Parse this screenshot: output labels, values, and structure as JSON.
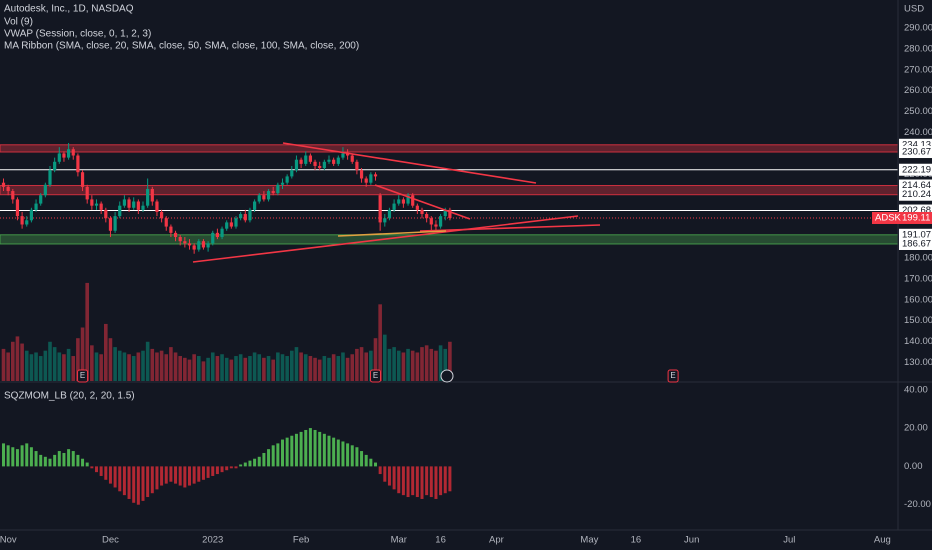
{
  "chart_data": {
    "type": "candlestick",
    "title": "Autodesk, Inc., 1D, NASDAQ",
    "indicators": [
      "Vol (9)",
      "VWAP (Session, close, 0, 1, 2, 3)",
      "MA Ribbon (SMA, close, 20, SMA, close, 50, SMA, close, 100, SMA, close, 200)"
    ],
    "currency": "USD",
    "symbol": "ADSK",
    "up_color": "#089981",
    "down_color": "#f23645",
    "grid": true,
    "open": [
      216,
      214,
      212,
      208,
      200,
      196,
      198,
      203,
      206,
      210,
      215,
      222,
      226,
      230,
      228,
      232,
      229,
      221,
      214,
      208,
      205,
      206,
      203,
      199,
      193,
      200,
      205,
      208,
      204,
      207,
      203,
      205,
      213,
      207,
      202,
      199,
      195,
      192,
      190,
      188,
      187,
      186,
      184,
      188,
      185,
      187,
      192,
      190,
      194,
      197,
      195,
      199,
      201,
      198,
      203,
      207,
      210,
      208,
      212,
      211,
      215,
      216,
      219,
      222,
      227,
      225,
      229,
      226,
      224,
      223,
      226,
      227,
      225,
      228,
      230,
      229,
      226,
      222,
      218,
      216,
      220,
      210,
      197,
      199,
      203,
      206,
      208,
      206,
      210,
      205,
      203,
      201,
      199,
      196,
      195,
      200,
      203
    ],
    "high": [
      218,
      215,
      213,
      209,
      202,
      200,
      204,
      208,
      211,
      216,
      224,
      228,
      233,
      231,
      235,
      233,
      230,
      222,
      215,
      210,
      208,
      207,
      204,
      200,
      202,
      207,
      210,
      209,
      209,
      208,
      207,
      218,
      214,
      208,
      203,
      200,
      196,
      193,
      191,
      190,
      189,
      187,
      189,
      189,
      188,
      193,
      194,
      195,
      198,
      199,
      200,
      202,
      203,
      204,
      208,
      211,
      212,
      213,
      214,
      216,
      218,
      220,
      224,
      229,
      228,
      231,
      230,
      227,
      226,
      227,
      229,
      228,
      229,
      233,
      232,
      230,
      227,
      223,
      219,
      221,
      221,
      211,
      201,
      204,
      208,
      210,
      209,
      211,
      211,
      206,
      204,
      202,
      200,
      198,
      201,
      204,
      204
    ],
    "low": [
      212,
      210,
      206,
      198,
      194,
      195,
      197,
      202,
      205,
      209,
      214,
      221,
      225,
      226,
      227,
      227,
      219,
      212,
      206,
      203,
      203,
      201,
      197,
      190,
      192,
      199,
      204,
      202,
      203,
      201,
      202,
      204,
      205,
      200,
      197,
      193,
      190,
      188,
      186,
      185,
      184,
      182,
      183,
      184,
      183,
      186,
      189,
      189,
      193,
      194,
      194,
      198,
      197,
      197,
      202,
      206,
      207,
      207,
      210,
      210,
      213,
      215,
      218,
      221,
      223,
      224,
      225,
      222,
      222,
      222,
      225,
      224,
      224,
      227,
      227,
      225,
      220,
      216,
      214,
      215,
      217,
      193,
      195,
      198,
      202,
      205,
      204,
      205,
      204,
      201,
      199,
      197,
      193,
      193,
      194,
      198,
      198
    ],
    "close": [
      214,
      212,
      208,
      200,
      196,
      198,
      203,
      206,
      210,
      215,
      222,
      226,
      230,
      228,
      232,
      229,
      221,
      214,
      208,
      205,
      206,
      203,
      199,
      193,
      200,
      205,
      208,
      204,
      207,
      203,
      205,
      213,
      207,
      202,
      199,
      195,
      192,
      190,
      188,
      187,
      186,
      184,
      188,
      185,
      187,
      192,
      190,
      194,
      197,
      195,
      199,
      201,
      198,
      203,
      207,
      210,
      208,
      212,
      211,
      215,
      216,
      219,
      222,
      227,
      225,
      229,
      226,
      224,
      223,
      226,
      227,
      225,
      228,
      230,
      229,
      226,
      222,
      218,
      216,
      220,
      219,
      197,
      199,
      203,
      206,
      208,
      206,
      210,
      205,
      203,
      201,
      199,
      196,
      195,
      200,
      203,
      199.11
    ],
    "ylim": [
      121.6,
      303.4
    ],
    "yticks": [
      {
        "value": 290,
        "label": "290.00"
      },
      {
        "value": 280,
        "label": "280.00"
      },
      {
        "value": 270,
        "label": "270.00"
      },
      {
        "value": 260,
        "label": "260.00"
      },
      {
        "value": 250,
        "label": "250.00"
      },
      {
        "value": 240,
        "label": "240.00"
      },
      {
        "value": 230,
        "label": "230.00"
      },
      {
        "value": 220,
        "label": "220.00"
      },
      {
        "value": 210,
        "label": "210.00"
      },
      {
        "value": 200,
        "label": "200.00"
      },
      {
        "value": 190,
        "label": "190.00"
      },
      {
        "value": 180,
        "label": "180.00"
      },
      {
        "value": 170,
        "label": "170.00"
      },
      {
        "value": 160,
        "label": "160.00"
      },
      {
        "value": 150,
        "label": "150.00"
      },
      {
        "value": 140,
        "label": "140.00"
      },
      {
        "value": 130,
        "label": "130.00"
      }
    ],
    "xticks": [
      {
        "value": 1,
        "label": "Nov"
      },
      {
        "value": 23,
        "label": "Dec"
      },
      {
        "value": 45,
        "label": "2023"
      },
      {
        "value": 64,
        "label": "Feb"
      },
      {
        "value": 85,
        "label": "Mar"
      },
      {
        "value": 94,
        "label": "16"
      },
      {
        "value": 106,
        "label": "Apr"
      },
      {
        "value": 126,
        "label": "May"
      },
      {
        "value": 136,
        "label": "16"
      },
      {
        "value": 148,
        "label": "Jun"
      },
      {
        "value": 169,
        "label": "Jul"
      },
      {
        "value": 189,
        "label": "Aug"
      }
    ],
    "zones": [
      {
        "low": 230.67,
        "high": 234.13,
        "color": "#f23645"
      },
      {
        "low": 210.24,
        "high": 214.64,
        "color": "#f23645"
      },
      {
        "low": 186.67,
        "high": 191.07,
        "color": "#4caf50"
      }
    ],
    "levels": [
      222.19,
      202.68
    ],
    "events": [
      {
        "bar": 17,
        "label": "E"
      },
      {
        "bar": 80,
        "label": "E"
      },
      {
        "bar": 144,
        "label": "E"
      }
    ],
    "volume": {
      "values": [
        1.8,
        1.6,
        2.2,
        2.5,
        2.1,
        1.7,
        1.5,
        1.6,
        1.4,
        1.7,
        2.2,
        1.9,
        1.6,
        1.5,
        1.8,
        1.4,
        2.4,
        3.0,
        5.5,
        2.0,
        1.6,
        1.5,
        3.2,
        2.4,
        1.9,
        1.7,
        1.6,
        1.5,
        1.4,
        1.6,
        1.7,
        2.2,
        1.8,
        1.6,
        1.7,
        1.5,
        1.9,
        1.6,
        1.4,
        1.3,
        1.2,
        1.5,
        1.4,
        1.1,
        1.3,
        1.6,
        1.4,
        1.5,
        1.3,
        1.2,
        1.4,
        1.5,
        1.3,
        1.4,
        1.6,
        1.5,
        1.3,
        1.4,
        1.2,
        1.6,
        1.5,
        1.4,
        1.7,
        1.9,
        1.6,
        1.5,
        1.4,
        1.3,
        1.2,
        1.4,
        1.3,
        1.5,
        1.4,
        1.6,
        1.3,
        1.5,
        1.8,
        1.9,
        1.6,
        1.7,
        2.4,
        4.3,
        2.6,
        1.8,
        1.9,
        1.7,
        1.6,
        1.8,
        1.7,
        1.6,
        1.9,
        2.0,
        1.8,
        1.7,
        2.0,
        1.8,
        2.2
      ],
      "ylim": [
        0,
        6
      ]
    },
    "momentum": {
      "name": "SQZMOM_LB (20, 2, 20, 1.5)",
      "values": [
        12,
        11,
        10,
        9,
        11,
        12,
        10,
        8,
        6,
        5,
        4,
        6,
        8,
        7,
        9,
        8,
        6,
        4,
        2,
        -1,
        -3,
        -5,
        -7,
        -9,
        -11,
        -13,
        -15,
        -17,
        -19,
        -20,
        -18,
        -16,
        -14,
        -12,
        -10,
        -9,
        -8,
        -9,
        -10,
        -11,
        -10,
        -9,
        -8,
        -7,
        -6,
        -5,
        -4,
        -3,
        -2,
        -1,
        -1,
        1,
        2,
        3,
        4,
        5,
        7,
        9,
        11,
        12,
        14,
        15,
        16,
        17,
        18,
        19,
        20,
        19,
        18,
        17,
        16,
        15,
        14,
        13,
        12,
        11,
        10,
        8,
        6,
        4,
        2,
        -4,
        -8,
        -10,
        -12,
        -14,
        -15,
        -16,
        -15,
        -16,
        -17,
        -15,
        -16,
        -17,
        -15,
        -14,
        -13
      ],
      "ylim": [
        -33.2,
        43
      ],
      "yticks": [
        {
          "value": 40,
          "label": "40.00"
        },
        {
          "value": 20,
          "label": "20.00"
        },
        {
          "value": 0,
          "label": "0.00"
        },
        {
          "value": -20,
          "label": "-20.00"
        }
      ],
      "pos_color": "#4caf50",
      "neg_color": "#b22833"
    }
  }
}
